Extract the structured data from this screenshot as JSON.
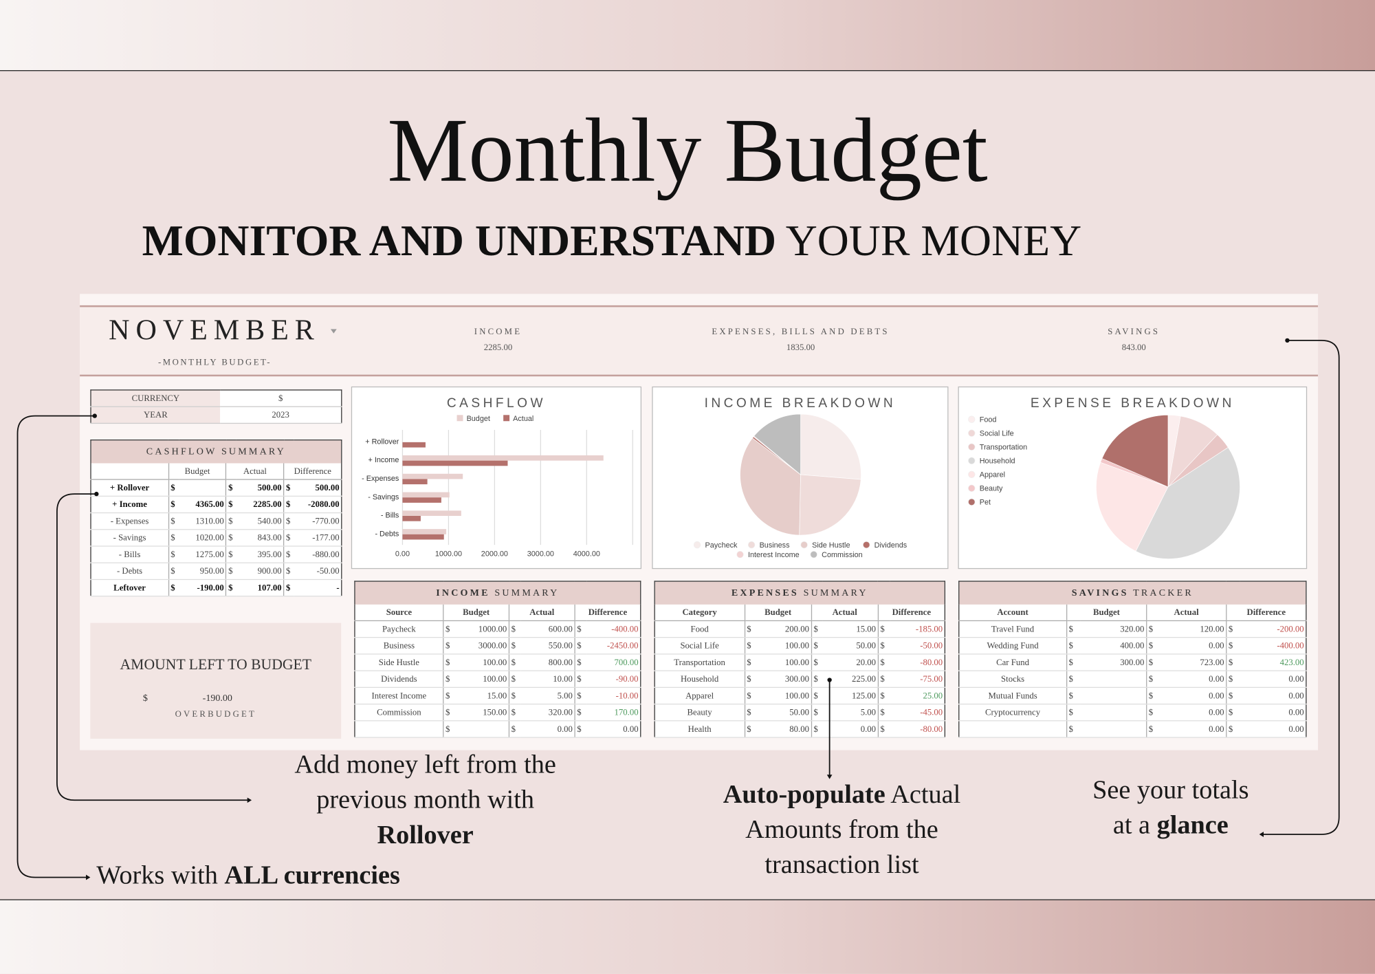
{
  "header": {
    "title": "Monthly Budget",
    "subtitle": {
      "bold": "MONITOR AND UNDERSTAND",
      "rest": "YOUR MONEY"
    }
  },
  "sheet": {
    "month": "NOVEMBER",
    "month_caption": "-MONTHLY BUDGET-",
    "totals": [
      {
        "label": "INCOME",
        "value": "2285.00"
      },
      {
        "label": "EXPENSES, BILLS AND DEBTS",
        "value": "1835.00"
      },
      {
        "label": "SAVINGS",
        "value": "843.00"
      }
    ],
    "settings": {
      "rows": [
        [
          "CURRENCY",
          "$"
        ],
        [
          "YEAR",
          "2023"
        ]
      ]
    },
    "cashflow_summary": {
      "title": "CASHFLOW SUMMARY",
      "columns": [
        "Budget",
        "Actual",
        "Difference"
      ],
      "rows": [
        [
          "+ Rollover",
          null,
          "500.00",
          "500.00"
        ],
        [
          "+ Income",
          "4365.00",
          "2285.00",
          "-2080.00"
        ],
        [
          "- Expenses",
          "1310.00",
          "540.00",
          "-770.00"
        ],
        [
          "- Savings",
          "1020.00",
          "843.00",
          "-177.00"
        ],
        [
          "- Bills",
          "1275.00",
          "395.00",
          "-880.00"
        ],
        [
          "- Debts",
          "950.00",
          "900.00",
          "-50.00"
        ],
        [
          "Leftover",
          "-190.00",
          "107.00",
          "-"
        ]
      ]
    },
    "amount_left": {
      "title": "AMOUNT LEFT TO BUDGET",
      "value": "-190.00",
      "status": "OVERBUDGET"
    },
    "income_summary": {
      "title": {
        "bold": "INCOME",
        "rest": "SUMMARY"
      },
      "columns": [
        "Source",
        "Budget",
        "Actual",
        "Difference"
      ],
      "rows": [
        [
          "Paycheck",
          "1000.00",
          "600.00",
          "-400.00"
        ],
        [
          "Business",
          "3000.00",
          "550.00",
          "-2450.00"
        ],
        [
          "Side Hustle",
          "100.00",
          "800.00",
          "700.00"
        ],
        [
          "Dividends",
          "100.00",
          "10.00",
          "-90.00"
        ],
        [
          "Interest Income",
          "15.00",
          "5.00",
          "-10.00"
        ],
        [
          "Commission",
          "150.00",
          "320.00",
          "170.00"
        ],
        [
          null,
          null,
          "0.00",
          "0.00"
        ]
      ]
    },
    "expenses_summary": {
      "title": {
        "bold": "EXPENSES",
        "rest": "SUMMARY"
      },
      "columns": [
        "Category",
        "Budget",
        "Actual",
        "Difference"
      ],
      "rows": [
        [
          "Food",
          "200.00",
          "15.00",
          "-185.00"
        ],
        [
          "Social Life",
          "100.00",
          "50.00",
          "-50.00"
        ],
        [
          "Transportation",
          "100.00",
          "20.00",
          "-80.00"
        ],
        [
          "Household",
          "300.00",
          "225.00",
          "-75.00"
        ],
        [
          "Apparel",
          "100.00",
          "125.00",
          "25.00"
        ],
        [
          "Beauty",
          "50.00",
          "5.00",
          "-45.00"
        ],
        [
          "Health",
          "80.00",
          "0.00",
          "-80.00"
        ]
      ]
    },
    "savings_tracker": {
      "title": {
        "bold": "SAVINGS",
        "rest": "TRACKER"
      },
      "columns": [
        "Account",
        "Budget",
        "Actual",
        "Difference"
      ],
      "rows": [
        [
          "Travel Fund",
          "320.00",
          "120.00",
          "-200.00"
        ],
        [
          "Wedding Fund",
          "400.00",
          "0.00",
          "-400.00"
        ],
        [
          "Car Fund",
          "300.00",
          "723.00",
          "423.00"
        ],
        [
          "Stocks",
          null,
          "0.00",
          "0.00"
        ],
        [
          "Mutual Funds",
          null,
          "0.00",
          "0.00"
        ],
        [
          "Cryptocurrency",
          null,
          "0.00",
          "0.00"
        ],
        [
          null,
          null,
          "0.00",
          "0.00"
        ]
      ]
    }
  },
  "chart_data": [
    {
      "type": "bar",
      "orientation": "horizontal",
      "title": "CASHFLOW",
      "categories": [
        "+ Rollover",
        "+ Income",
        "- Expenses",
        "- Savings",
        "- Bills",
        "- Debts"
      ],
      "series": [
        {
          "name": "Budget",
          "color": "#e8d0ce",
          "values": [
            null,
            4365,
            1310,
            1020,
            1275,
            950
          ]
        },
        {
          "name": "Actual",
          "color": "#b4716c",
          "values": [
            500,
            2285,
            540,
            843,
            395,
            900
          ]
        }
      ],
      "xlim": [
        0,
        5000
      ],
      "xticks": [
        {
          "value": 0,
          "label": "0.00"
        },
        {
          "value": 1000,
          "label": "1000.00"
        },
        {
          "value": 2000,
          "label": "2000.00"
        },
        {
          "value": 3000,
          "label": "3000.00"
        },
        {
          "value": 4000,
          "label": "4000.00"
        }
      ],
      "grid": true,
      "legend": "top"
    },
    {
      "type": "pie",
      "title": "INCOME BREAKDOWN",
      "categories": [
        "Paycheck",
        "Business",
        "Side Hustle",
        "Dividends",
        "Interest Income",
        "Commission"
      ],
      "values": [
        600,
        550,
        800,
        10,
        5,
        320
      ],
      "colors": [
        "#f6eceb",
        "#efdcda",
        "#e6cdca",
        "#b5706a",
        "#f2d3d3",
        "#bdbdbd"
      ],
      "legend": "bottom"
    },
    {
      "type": "pie",
      "title": "EXPENSE BREAKDOWN",
      "categories": [
        "Food",
        "Social Life",
        "Transportation",
        "Household",
        "Apparel",
        "Beauty",
        "Pet"
      ],
      "values": [
        15,
        50,
        20,
        225,
        125,
        5,
        100
      ],
      "colors": [
        "#fbeeee",
        "#efd8d7",
        "#e8c6c5",
        "#d9d9d9",
        "#fde6e6",
        "#f3c8ca",
        "#b0706b"
      ],
      "legend": "left"
    }
  ],
  "annotations": [
    {
      "text": "Add money left from the previous month with",
      "bold": "Rollover"
    },
    {
      "text": "Works with",
      "bold": "ALL currencies"
    },
    {
      "bold": "Auto-populate",
      "text": "Actual Amounts from the transaction list"
    },
    {
      "text": "See your totals at a",
      "bold": "glance"
    }
  ]
}
